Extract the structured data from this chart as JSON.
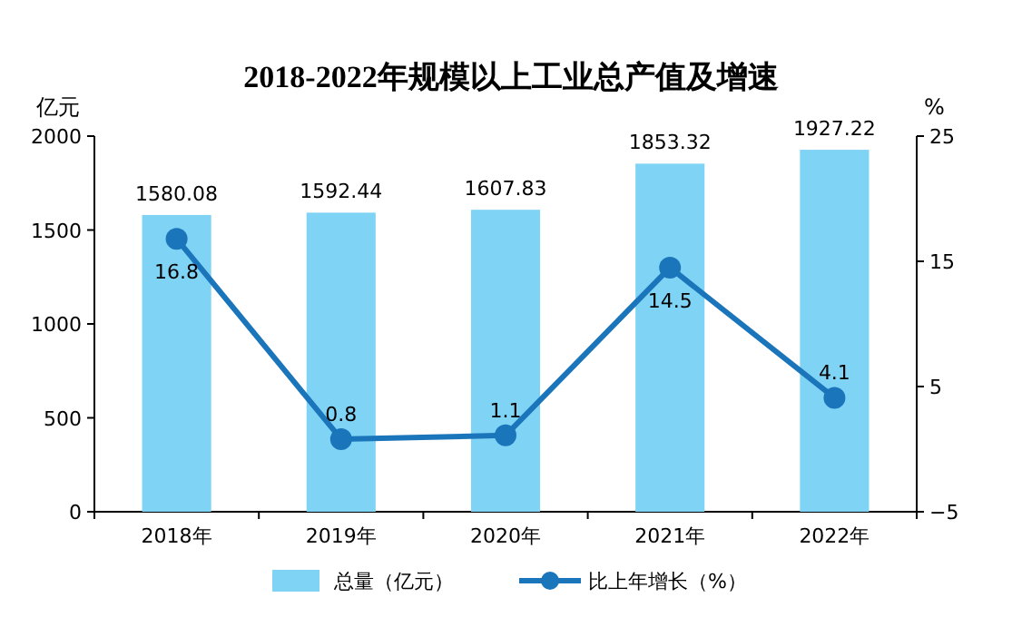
{
  "chart_data": {
    "type": "bar",
    "title": "2018-2022年规模以上工业总产值及增速",
    "categories": [
      "2018年",
      "2019年",
      "2020年",
      "2021年",
      "2022年"
    ],
    "series": [
      {
        "name": "总量（亿元）",
        "color": "#7fd3f4",
        "values": [
          1580.08,
          1592.44,
          1607.83,
          1853.32,
          1927.22
        ]
      },
      {
        "name": "比上年增长（%）",
        "type": "line",
        "axis": "y2",
        "color": "#1b75bb",
        "marker": "circle",
        "values": [
          16.8,
          0.8,
          1.1,
          14.5,
          4.1
        ]
      }
    ],
    "ylabel": "亿元",
    "y2label": "%",
    "ylim": [
      0,
      2000
    ],
    "yticks": [
      0,
      500,
      1000,
      1500,
      2000
    ],
    "y2lim": [
      -5,
      25
    ],
    "y2ticks": [
      -5,
      5,
      15,
      25
    ],
    "data_labels": true,
    "legend": "bottom",
    "grid": false
  }
}
